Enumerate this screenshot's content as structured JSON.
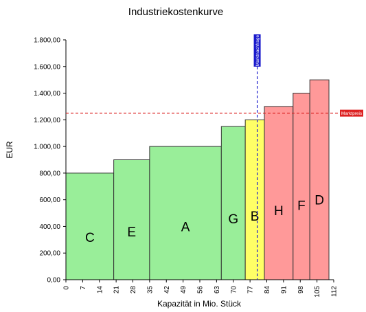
{
  "chart_data": {
    "type": "bar",
    "title": "Industriekostenkurve",
    "xlabel": "Kapazität in Mio. Stück",
    "ylabel": "EUR",
    "xlim": [
      0,
      112
    ],
    "ylim": [
      0,
      1800
    ],
    "x_ticks": [
      "0",
      "7",
      "14",
      "21",
      "28",
      "35",
      "42",
      "49",
      "56",
      "63",
      "70",
      "77",
      "84",
      "91",
      "98",
      "105",
      "112"
    ],
    "y_ticks": [
      "0,00",
      "200,00",
      "400,00",
      "600,00",
      "800,00",
      "1.000,00",
      "1.200,00",
      "1.400,00",
      "1.600,00",
      "1.800,00"
    ],
    "bars": [
      {
        "label": "C",
        "x_start": 0,
        "x_end": 20,
        "value": 800,
        "color": "#99ee99"
      },
      {
        "label": "E",
        "x_start": 20,
        "x_end": 35,
        "value": 900,
        "color": "#99ee99"
      },
      {
        "label": "A",
        "x_start": 35,
        "x_end": 65,
        "value": 1000,
        "color": "#99ee99"
      },
      {
        "label": "G",
        "x_start": 65,
        "x_end": 75,
        "value": 1150,
        "color": "#99ee99"
      },
      {
        "label": "B",
        "x_start": 75,
        "x_end": 83,
        "value": 1200,
        "color": "#ffff66"
      },
      {
        "label": "H",
        "x_start": 83,
        "x_end": 95,
        "value": 1300,
        "color": "#ff9999"
      },
      {
        "label": "F",
        "x_start": 95,
        "x_end": 102,
        "value": 1400,
        "color": "#ff9999"
      },
      {
        "label": "D",
        "x_start": 102,
        "x_end": 110,
        "value": 1500,
        "color": "#ff9999"
      }
    ],
    "marktpreis": {
      "value": 1250,
      "label": "Marktpreis",
      "color": "#dd2222"
    },
    "marktnachfrage": {
      "value": 80,
      "label": "Marktnachfrage",
      "color": "#1a1acc"
    },
    "grid": false
  }
}
